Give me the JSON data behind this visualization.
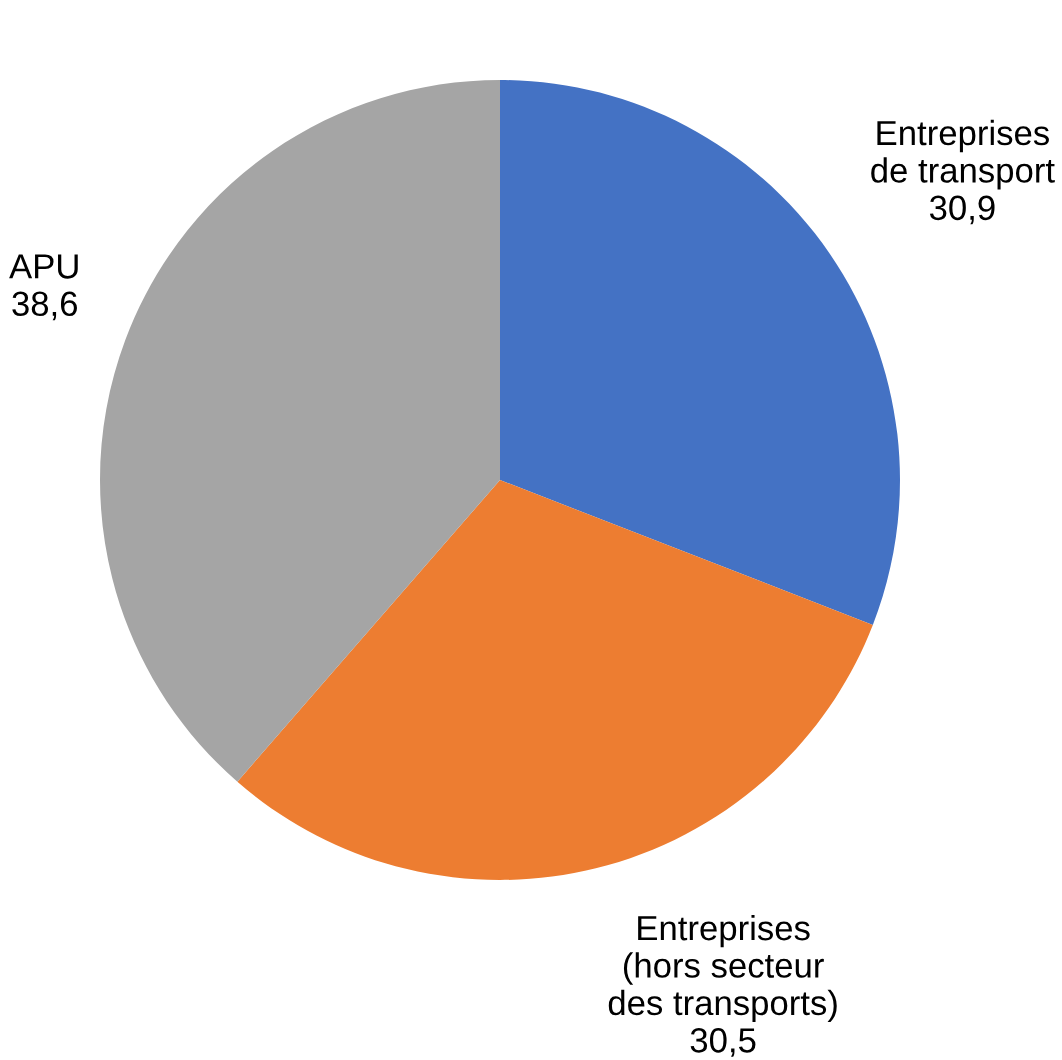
{
  "chart_data": {
    "type": "pie",
    "categories": [
      "Entreprises\nde transport",
      "Entreprises\n(hors secteur\ndes transports)",
      "APU"
    ],
    "values": [
      30.9,
      30.5,
      38.6
    ],
    "value_labels": [
      "30,9",
      "30,5",
      "38,6"
    ],
    "colors": [
      "#4472c4",
      "#ed7d31",
      "#a5a5a5"
    ],
    "legend": false
  }
}
